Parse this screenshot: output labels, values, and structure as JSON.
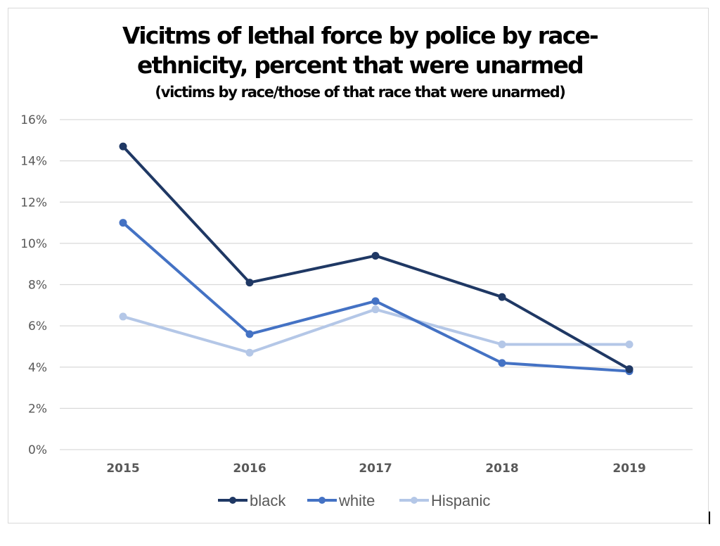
{
  "chart_data": {
    "type": "line",
    "title_line1": "Vicitms of lethal force by police by race-",
    "title_line2": "ethnicity, percent that were unarmed",
    "subtitle": "(victims by race/those of that race that were unarmed)",
    "xlabel": "",
    "ylabel": "",
    "categories": [
      "2015",
      "2016",
      "2017",
      "2018",
      "2019"
    ],
    "ylim": [
      0,
      16
    ],
    "yticks": [
      0,
      2,
      4,
      6,
      8,
      10,
      12,
      14,
      16
    ],
    "ytick_labels": [
      "0%",
      "2%",
      "4%",
      "6%",
      "8%",
      "10%",
      "12%",
      "14%",
      "16%"
    ],
    "grid": true,
    "legend_position": "bottom",
    "series": [
      {
        "name": "black",
        "color": "#1f3864",
        "values": [
          14.7,
          8.1,
          9.4,
          7.4,
          3.9
        ]
      },
      {
        "name": "white",
        "color": "#4472c4",
        "values": [
          11.0,
          5.6,
          7.2,
          4.2,
          3.8
        ]
      },
      {
        "name": "Hispanic",
        "color": "#b4c7e7",
        "values": [
          6.45,
          4.7,
          6.8,
          5.1,
          5.1
        ]
      }
    ]
  }
}
